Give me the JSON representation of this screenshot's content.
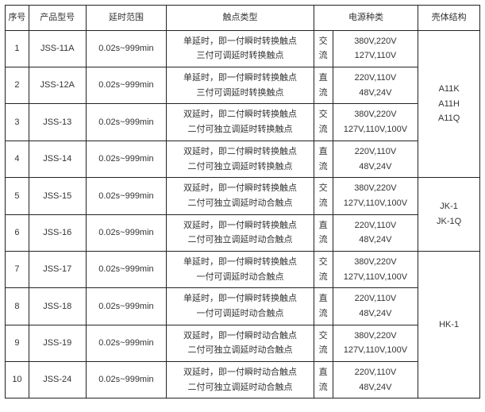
{
  "headers": {
    "seq": "序号",
    "model": "产品型号",
    "delay": "延时范围",
    "contact": "触点类型",
    "power": "电源种类",
    "shell": "壳体结构"
  },
  "rows": [
    {
      "seq": "1",
      "model": "JSS-11A",
      "delay": "0.02s~999min",
      "contact_l1": "单延时，即一付瞬时转换触点",
      "contact_l2": "三付可调延时转换触点",
      "ptype_l1": "交",
      "ptype_l2": "流",
      "volt_l1": "380V,220V",
      "volt_l2": "127V,110V"
    },
    {
      "seq": "2",
      "model": "JSS-12A",
      "delay": "0.02s~999min",
      "contact_l1": "单延时，即一付瞬时转换触点",
      "contact_l2": "三付可调延时转换触点",
      "ptype_l1": "直",
      "ptype_l2": "流",
      "volt_l1": "220V,110V",
      "volt_l2": "48V,24V"
    },
    {
      "seq": "3",
      "model": "JSS-13",
      "delay": "0.02s~999min",
      "contact_l1": "双延时，即二付瞬时转换触点",
      "contact_l2": "二付可独立调延时转换触点",
      "ptype_l1": "交",
      "ptype_l2": "流",
      "volt_l1": "380V,220V",
      "volt_l2": "127V,110V,100V"
    },
    {
      "seq": "4",
      "model": "JSS-14",
      "delay": "0.02s~999min",
      "contact_l1": "双延时，即二付瞬时转换触点",
      "contact_l2": "二付可独立调延时转换触点",
      "ptype_l1": "直",
      "ptype_l2": "流",
      "volt_l1": "220V,110V",
      "volt_l2": "48V,24V"
    },
    {
      "seq": "5",
      "model": "JSS-15",
      "delay": "0.02s~999min",
      "contact_l1": "双延时，即一付瞬时转换触点",
      "contact_l2": "二付可独立调延时动合触点",
      "ptype_l1": "交",
      "ptype_l2": "流",
      "volt_l1": "380V,220V",
      "volt_l2": "127V,110V,100V"
    },
    {
      "seq": "6",
      "model": "JSS-16",
      "delay": "0.02s~999min",
      "contact_l1": "双延时，即一付瞬时转换触点",
      "contact_l2": "二付可独立调延时动合触点",
      "ptype_l1": "直",
      "ptype_l2": "流",
      "volt_l1": "220V,110V",
      "volt_l2": "48V,24V"
    },
    {
      "seq": "7",
      "model": "JSS-17",
      "delay": "0.02s~999min",
      "contact_l1": "单延时，即一付瞬时转换触点",
      "contact_l2": "一付可调延时动合触点",
      "ptype_l1": "交",
      "ptype_l2": "流",
      "volt_l1": "380V,220V",
      "volt_l2": "127V,110V,100V"
    },
    {
      "seq": "8",
      "model": "JSS-18",
      "delay": "0.02s~999min",
      "contact_l1": "单延时，即一付瞬时转换触点",
      "contact_l2": "一付可调延时动合触点",
      "ptype_l1": "直",
      "ptype_l2": "流",
      "volt_l1": "220V,110V",
      "volt_l2": "48V,24V"
    },
    {
      "seq": "9",
      "model": "JSS-19",
      "delay": "0.02s~999min",
      "contact_l1": "双延时，即一付瞬时动合触点",
      "contact_l2": "二付可独立调延时动合触点",
      "ptype_l1": "交",
      "ptype_l2": "流",
      "volt_l1": "380V,220V",
      "volt_l2": "127V,110V,100V"
    },
    {
      "seq": "10",
      "model": "JSS-24",
      "delay": "0.02s~999min",
      "contact_l1": "双延时，即一付瞬时动合触点",
      "contact_l2": "二付可独立调延时动合触点",
      "ptype_l1": "直",
      "ptype_l2": "流",
      "volt_l1": "220V,110V",
      "volt_l2": "48V,24V"
    }
  ],
  "shell_groups": [
    {
      "span": 4,
      "l1": "A11K",
      "l2": "A11H",
      "l3": "A11Q"
    },
    {
      "span": 2,
      "l1": "JK-1",
      "l2": "JK-1Q",
      "l3": ""
    },
    {
      "span": 4,
      "l1": "HK-1",
      "l2": "",
      "l3": ""
    }
  ]
}
